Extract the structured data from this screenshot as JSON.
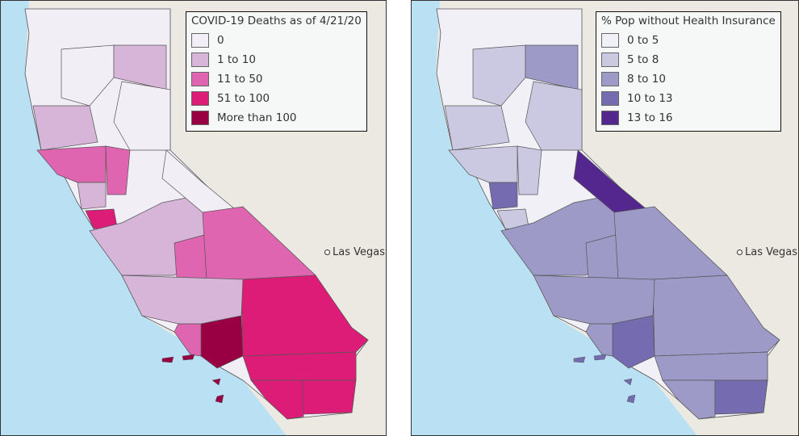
{
  "maps": [
    {
      "legend_title": "COVID-19 Deaths as of 4/21/20",
      "classes": [
        {
          "label": "0",
          "color": "#f1eef6"
        },
        {
          "label": "1 to 10",
          "color": "#d7b5d8"
        },
        {
          "label": "11 to 50",
          "color": "#df65b0"
        },
        {
          "label": "51 to 100",
          "color": "#dd1c77"
        },
        {
          "label": "More than 100",
          "color": "#980043"
        }
      ],
      "region_classes": [
        0,
        1,
        1,
        2,
        2,
        3,
        1,
        2,
        0,
        0,
        1,
        2,
        4,
        2,
        3,
        3,
        3,
        1,
        3
      ],
      "city": "Las Vegas"
    },
    {
      "legend_title": "% Pop without Health Insurance",
      "classes": [
        {
          "label": "0 to 5",
          "color": "#f2f0f7"
        },
        {
          "label": "5 to 8",
          "color": "#cbc9e2"
        },
        {
          "label": "8 to 10",
          "color": "#9e9ac8"
        },
        {
          "label": "10 to 13",
          "color": "#756bb1"
        },
        {
          "label": "13 to 16",
          "color": "#54278f"
        }
      ],
      "region_classes": [
        1,
        1,
        2,
        1,
        1,
        1,
        2,
        2,
        1,
        4,
        3,
        2,
        3,
        2,
        2,
        2,
        2,
        2,
        3
      ],
      "city": "Las Vegas"
    }
  ]
}
